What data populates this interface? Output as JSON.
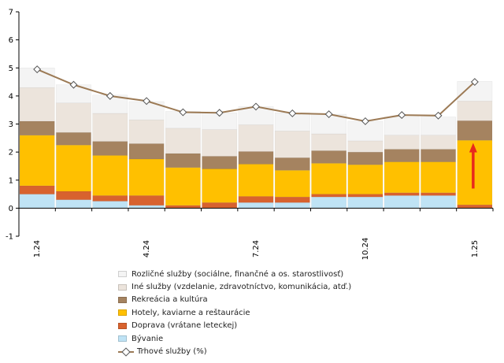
{
  "chart_data": {
    "type": "bar",
    "stacked": true,
    "categories": [
      "1.24",
      "",
      "",
      "4.24",
      "",
      "",
      "7.24",
      "",
      "",
      "10.24",
      "",
      "",
      "1.25"
    ],
    "y_ticks": [
      "-1",
      "0",
      "1",
      "2",
      "3",
      "4",
      "5",
      "6",
      "7"
    ],
    "ylim": [
      -1,
      7
    ],
    "grid": false,
    "legend_position": "bottom",
    "series": [
      {
        "name": "Bývanie",
        "color": "#bfe3f5",
        "values": [
          0.5,
          0.3,
          0.25,
          0.1,
          0.0,
          0.0,
          0.2,
          0.2,
          0.4,
          0.4,
          0.45,
          0.45,
          0.0
        ]
      },
      {
        "name": "Doprava (vrátane leteckej)",
        "color": "#d8622e",
        "values": [
          0.3,
          0.3,
          0.2,
          0.35,
          0.1,
          0.2,
          0.22,
          0.2,
          0.1,
          0.1,
          0.1,
          0.1,
          0.12
        ]
      },
      {
        "name": "Hotely, kaviarne a reštaurácie",
        "color": "#ffc000",
        "values": [
          1.8,
          1.65,
          1.43,
          1.3,
          1.35,
          1.2,
          1.15,
          0.95,
          1.1,
          1.05,
          1.1,
          1.1,
          2.3
        ]
      },
      {
        "name": "Rekreácia a kultúra",
        "color": "#a58360",
        "values": [
          0.5,
          0.45,
          0.5,
          0.55,
          0.5,
          0.45,
          0.45,
          0.45,
          0.45,
          0.45,
          0.45,
          0.45,
          0.7
        ]
      },
      {
        "name": "Iné služby (vzdelanie, zdravotníctvo, komunikácia, atď.)",
        "color": "#ece4dc",
        "values": [
          1.2,
          1.05,
          1.0,
          0.85,
          0.9,
          0.95,
          0.95,
          0.95,
          0.6,
          0.4,
          0.5,
          0.5,
          0.7
        ]
      },
      {
        "name": "Rozličné služby (sociálne, finančné a os. starostlivosť)",
        "color": "#f4f4f4",
        "values": [
          0.7,
          0.65,
          0.65,
          0.65,
          0.6,
          0.6,
          0.65,
          0.65,
          0.7,
          0.7,
          0.65,
          0.65,
          0.7
        ]
      }
    ],
    "line_series": {
      "name": "Trhové služby (%)",
      "color": "#9c7a55",
      "values": [
        4.95,
        4.4,
        4.0,
        3.82,
        3.42,
        3.4,
        3.62,
        3.38,
        3.35,
        3.1,
        3.32,
        3.3,
        4.5
      ]
    },
    "annotation": {
      "type": "arrow",
      "direction": "up",
      "category_index": 12,
      "from": 0.7,
      "to": 2.3,
      "color": "#e8291c"
    }
  }
}
